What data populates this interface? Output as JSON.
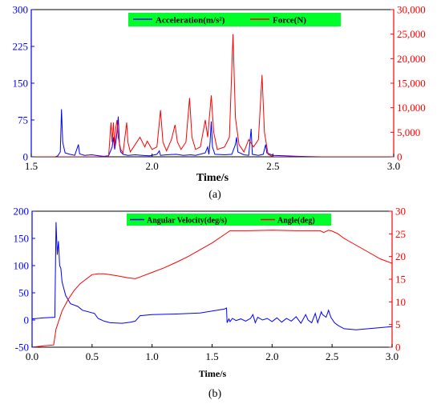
{
  "chart_data": [
    {
      "type": "line",
      "caption": "(a)",
      "xlabel": "Time/s",
      "xlim": [
        1.5,
        3.0
      ],
      "xticks": [
        "1.5",
        "2.0",
        "2.5",
        "3.0"
      ],
      "xtick_values": [
        1.5,
        2.0,
        2.5,
        3.0
      ],
      "ylim_left": [
        0,
        300
      ],
      "yticks_left": [
        "0",
        "75",
        "150",
        "225",
        "300"
      ],
      "ytick_values_left": [
        0,
        75,
        150,
        225,
        300
      ],
      "ylim_right": [
        0,
        30000
      ],
      "yticks_right": [
        "0",
        "5,000",
        "10,000",
        "15,000",
        "20,000",
        "25,000",
        "30,000"
      ],
      "ytick_values_right": [
        0,
        5000,
        10000,
        15000,
        20000,
        25000,
        30000
      ],
      "legend_placement": "top-center",
      "legend_background": "#00ff2a",
      "series": [
        {
          "name": "Acceleration(m/s²)",
          "axis": "left",
          "color": "#0000ff",
          "points": [
            [
              1.5,
              0
            ],
            [
              1.6,
              0
            ],
            [
              1.61,
              2
            ],
            [
              1.62,
              10
            ],
            [
              1.625,
              97
            ],
            [
              1.63,
              30
            ],
            [
              1.64,
              8
            ],
            [
              1.66,
              5
            ],
            [
              1.68,
              3
            ],
            [
              1.695,
              25
            ],
            [
              1.7,
              6
            ],
            [
              1.72,
              3
            ],
            [
              1.75,
              4
            ],
            [
              1.78,
              2
            ],
            [
              1.8,
              1
            ],
            [
              1.82,
              2
            ],
            [
              1.835,
              20
            ],
            [
              1.84,
              40
            ],
            [
              1.845,
              15
            ],
            [
              1.85,
              30
            ],
            [
              1.855,
              50
            ],
            [
              1.86,
              82
            ],
            [
              1.865,
              25
            ],
            [
              1.87,
              10
            ],
            [
              1.88,
              5
            ],
            [
              1.9,
              3
            ],
            [
              1.93,
              4
            ],
            [
              1.96,
              3
            ],
            [
              1.99,
              2
            ],
            [
              2.02,
              5
            ],
            [
              2.03,
              12
            ],
            [
              2.035,
              3
            ],
            [
              2.06,
              4
            ],
            [
              2.1,
              5
            ],
            [
              2.13,
              3
            ],
            [
              2.16,
              4
            ],
            [
              2.18,
              3
            ],
            [
              2.22,
              8
            ],
            [
              2.23,
              20
            ],
            [
              2.235,
              5
            ],
            [
              2.24,
              30
            ],
            [
              2.245,
              72
            ],
            [
              2.25,
              20
            ],
            [
              2.26,
              5
            ],
            [
              2.3,
              4
            ],
            [
              2.33,
              5
            ],
            [
              2.345,
              25
            ],
            [
              2.35,
              40
            ],
            [
              2.355,
              10
            ],
            [
              2.38,
              4
            ],
            [
              2.4,
              3
            ],
            [
              2.41,
              57
            ],
            [
              2.415,
              5
            ],
            [
              2.44,
              3
            ],
            [
              2.46,
              5
            ],
            [
              2.47,
              25
            ],
            [
              2.475,
              8
            ],
            [
              2.5,
              3
            ],
            [
              2.55,
              2
            ],
            [
              2.6,
              1
            ],
            [
              2.7,
              0
            ],
            [
              3.0,
              0
            ]
          ]
        },
        {
          "name": "Force(N)",
          "axis": "right",
          "color": "#ff0000",
          "points": [
            [
              1.5,
              0
            ],
            [
              1.82,
              0
            ],
            [
              1.83,
              7000
            ],
            [
              1.835,
              3000
            ],
            [
              1.84,
              7000
            ],
            [
              1.845,
              2000
            ],
            [
              1.85,
              6000
            ],
            [
              1.855,
              7500
            ],
            [
              1.86,
              4000
            ],
            [
              1.87,
              1500
            ],
            [
              1.88,
              800
            ],
            [
              1.895,
              7000
            ],
            [
              1.9,
              3000
            ],
            [
              1.91,
              1000
            ],
            [
              1.93,
              2500
            ],
            [
              1.95,
              4000
            ],
            [
              1.97,
              2000
            ],
            [
              1.98,
              3200
            ],
            [
              2.0,
              1500
            ],
            [
              2.02,
              2000
            ],
            [
              2.035,
              9500
            ],
            [
              2.045,
              3000
            ],
            [
              2.06,
              1200
            ],
            [
              2.08,
              3500
            ],
            [
              2.095,
              6500
            ],
            [
              2.105,
              3000
            ],
            [
              2.12,
              1500
            ],
            [
              2.14,
              3000
            ],
            [
              2.155,
              12000
            ],
            [
              2.165,
              4000
            ],
            [
              2.18,
              1500
            ],
            [
              2.2,
              2000
            ],
            [
              2.22,
              7500
            ],
            [
              2.23,
              4000
            ],
            [
              2.245,
              12500
            ],
            [
              2.255,
              5000
            ],
            [
              2.27,
              1500
            ],
            [
              2.3,
              2000
            ],
            [
              2.32,
              4000
            ],
            [
              2.335,
              25000
            ],
            [
              2.345,
              8000
            ],
            [
              2.36,
              2500
            ],
            [
              2.38,
              1000
            ],
            [
              2.4,
              3500
            ],
            [
              2.42,
              2000
            ],
            [
              2.44,
              3500
            ],
            [
              2.455,
              16700
            ],
            [
              2.465,
              5000
            ],
            [
              2.48,
              500
            ],
            [
              2.5,
              0
            ],
            [
              3.0,
              0
            ]
          ]
        }
      ]
    },
    {
      "type": "line",
      "caption": "(b)",
      "xlabel": "Time/s",
      "xlim": [
        0.0,
        3.0
      ],
      "xticks": [
        "0.0",
        "0.5",
        "1.0",
        "1.5",
        "2.0",
        "2.5",
        "3.0"
      ],
      "xtick_values": [
        0.0,
        0.5,
        1.0,
        1.5,
        2.0,
        2.5,
        3.0
      ],
      "ylim_left": [
        -50,
        200
      ],
      "yticks_left": [
        "-50",
        "0",
        "50",
        "100",
        "150",
        "200"
      ],
      "ytick_values_left": [
        -50,
        0,
        50,
        100,
        150,
        200
      ],
      "ylim_right": [
        0,
        30
      ],
      "yticks_right": [
        "0",
        "5",
        "10",
        "15",
        "20",
        "25",
        "30"
      ],
      "ytick_values_right": [
        0,
        5,
        10,
        15,
        20,
        25,
        30
      ],
      "legend_placement": "top-center",
      "legend_background": "#00ff2a",
      "series": [
        {
          "name": "Angular Velocity(deg/s)",
          "axis": "left",
          "color": "#0000ff",
          "points": [
            [
              0.0,
              2
            ],
            [
              0.1,
              4
            ],
            [
              0.19,
              5
            ],
            [
              0.2,
              180
            ],
            [
              0.21,
              120
            ],
            [
              0.22,
              145
            ],
            [
              0.23,
              100
            ],
            [
              0.24,
              95
            ],
            [
              0.25,
              70
            ],
            [
              0.28,
              45
            ],
            [
              0.32,
              30
            ],
            [
              0.38,
              25
            ],
            [
              0.42,
              18
            ],
            [
              0.52,
              12
            ],
            [
              0.55,
              3
            ],
            [
              0.6,
              -2
            ],
            [
              0.65,
              -5
            ],
            [
              0.75,
              -6
            ],
            [
              0.82,
              -4
            ],
            [
              0.86,
              -2
            ],
            [
              0.9,
              8
            ],
            [
              1.0,
              10
            ],
            [
              1.2,
              11
            ],
            [
              1.4,
              13
            ],
            [
              1.6,
              20
            ],
            [
              1.62,
              22
            ],
            [
              1.625,
              -5
            ],
            [
              1.64,
              2
            ],
            [
              1.65,
              -3
            ],
            [
              1.67,
              3
            ],
            [
              1.7,
              -1
            ],
            [
              1.74,
              2
            ],
            [
              1.78,
              -2
            ],
            [
              1.82,
              3
            ],
            [
              1.84,
              10
            ],
            [
              1.86,
              -5
            ],
            [
              1.88,
              5
            ],
            [
              1.92,
              0
            ],
            [
              1.96,
              3
            ],
            [
              2.0,
              -3
            ],
            [
              2.04,
              4
            ],
            [
              2.08,
              -4
            ],
            [
              2.12,
              3
            ],
            [
              2.16,
              -2
            ],
            [
              2.2,
              6
            ],
            [
              2.24,
              -6
            ],
            [
              2.28,
              10
            ],
            [
              2.3,
              0
            ],
            [
              2.33,
              -5
            ],
            [
              2.36,
              12
            ],
            [
              2.38,
              -5
            ],
            [
              2.41,
              15
            ],
            [
              2.42,
              10
            ],
            [
              2.45,
              5
            ],
            [
              2.47,
              18
            ],
            [
              2.49,
              5
            ],
            [
              2.52,
              -5
            ],
            [
              2.55,
              -10
            ],
            [
              2.6,
              -16
            ],
            [
              2.7,
              -18
            ],
            [
              2.8,
              -16
            ],
            [
              3.0,
              -12
            ]
          ]
        },
        {
          "name": "Angle(deg)",
          "axis": "right",
          "color": "#ff0000",
          "points": [
            [
              0.0,
              0
            ],
            [
              0.1,
              0.3
            ],
            [
              0.18,
              0.5
            ],
            [
              0.2,
              4
            ],
            [
              0.25,
              8
            ],
            [
              0.3,
              10.5
            ],
            [
              0.35,
              12.5
            ],
            [
              0.4,
              14
            ],
            [
              0.45,
              15
            ],
            [
              0.5,
              16
            ],
            [
              0.55,
              16.2
            ],
            [
              0.6,
              16.2
            ],
            [
              0.7,
              15.8
            ],
            [
              0.8,
              15.3
            ],
            [
              0.86,
              15.1
            ],
            [
              0.9,
              15.5
            ],
            [
              1.0,
              16.5
            ],
            [
              1.1,
              17.5
            ],
            [
              1.2,
              18.7
            ],
            [
              1.3,
              20
            ],
            [
              1.4,
              21.5
            ],
            [
              1.5,
              23
            ],
            [
              1.6,
              24.8
            ],
            [
              1.65,
              25.7
            ],
            [
              1.8,
              25.7
            ],
            [
              2.0,
              25.8
            ],
            [
              2.2,
              25.7
            ],
            [
              2.4,
              25.7
            ],
            [
              2.43,
              25.3
            ],
            [
              2.47,
              25.8
            ],
            [
              2.5,
              25.6
            ],
            [
              2.55,
              25
            ],
            [
              2.6,
              24
            ],
            [
              2.7,
              22.5
            ],
            [
              2.8,
              21
            ],
            [
              2.9,
              19.5
            ],
            [
              3.0,
              18.5
            ]
          ]
        }
      ]
    }
  ]
}
